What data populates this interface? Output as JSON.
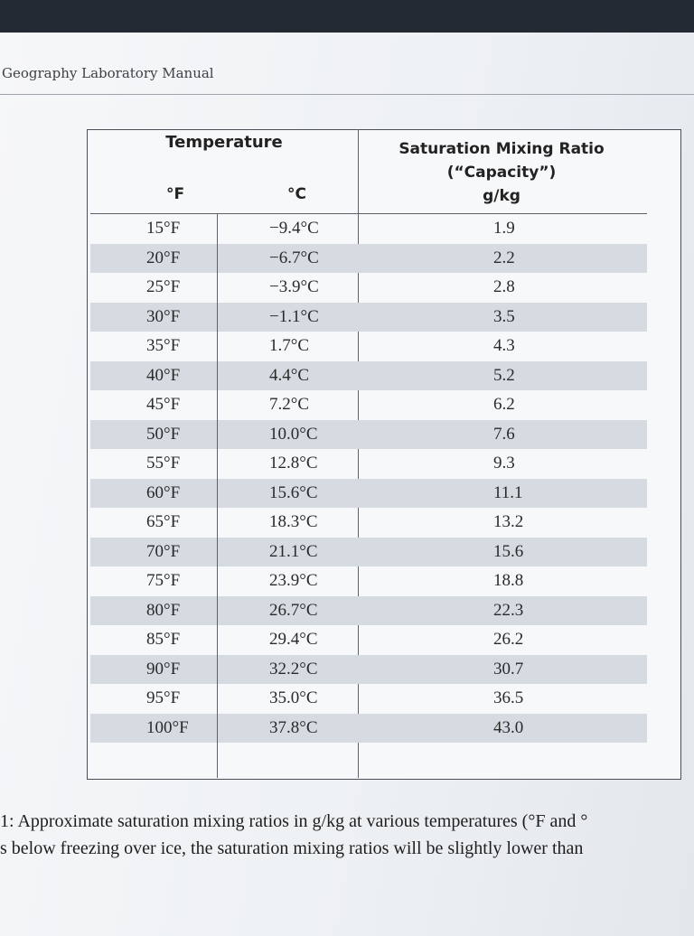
{
  "running_head": "Geography Laboratory Manual",
  "table": {
    "header_temperature": "Temperature",
    "header_ratio_line1": "Saturation Mixing Ratio",
    "header_ratio_line2": "(“Capacity”)",
    "header_ratio_line3": "g/kg",
    "header_f": "°F",
    "header_c": "°C",
    "rows": [
      {
        "f": "15°F",
        "c": "−9.4°C",
        "ratio": "1.9"
      },
      {
        "f": "20°F",
        "c": "−6.7°C",
        "ratio": "2.2"
      },
      {
        "f": "25°F",
        "c": "−3.9°C",
        "ratio": "2.8"
      },
      {
        "f": "30°F",
        "c": "−1.1°C",
        "ratio": "3.5"
      },
      {
        "f": "35°F",
        "c": "1.7°C",
        "ratio": "4.3"
      },
      {
        "f": "40°F",
        "c": "4.4°C",
        "ratio": "5.2"
      },
      {
        "f": "45°F",
        "c": "7.2°C",
        "ratio": "6.2"
      },
      {
        "f": "50°F",
        "c": "10.0°C",
        "ratio": "7.6"
      },
      {
        "f": "55°F",
        "c": "12.8°C",
        "ratio": "9.3"
      },
      {
        "f": "60°F",
        "c": "15.6°C",
        "ratio": "11.1"
      },
      {
        "f": "65°F",
        "c": "18.3°C",
        "ratio": "13.2"
      },
      {
        "f": "70°F",
        "c": "21.1°C",
        "ratio": "15.6"
      },
      {
        "f": "75°F",
        "c": "23.9°C",
        "ratio": "18.8"
      },
      {
        "f": "80°F",
        "c": "26.7°C",
        "ratio": "22.3"
      },
      {
        "f": "85°F",
        "c": "29.4°C",
        "ratio": "26.2"
      },
      {
        "f": "90°F",
        "c": "32.2°C",
        "ratio": "30.7"
      },
      {
        "f": "95°F",
        "c": "35.0°C",
        "ratio": "36.5"
      },
      {
        "f": "100°F",
        "c": "37.8°C",
        "ratio": "43.0"
      }
    ]
  },
  "caption_line1": "1: Approximate saturation mixing ratios in g/kg at various temperatures (°F and °",
  "caption_line2": "s below freezing over ice, the saturation mixing ratios will be slightly lower than"
}
